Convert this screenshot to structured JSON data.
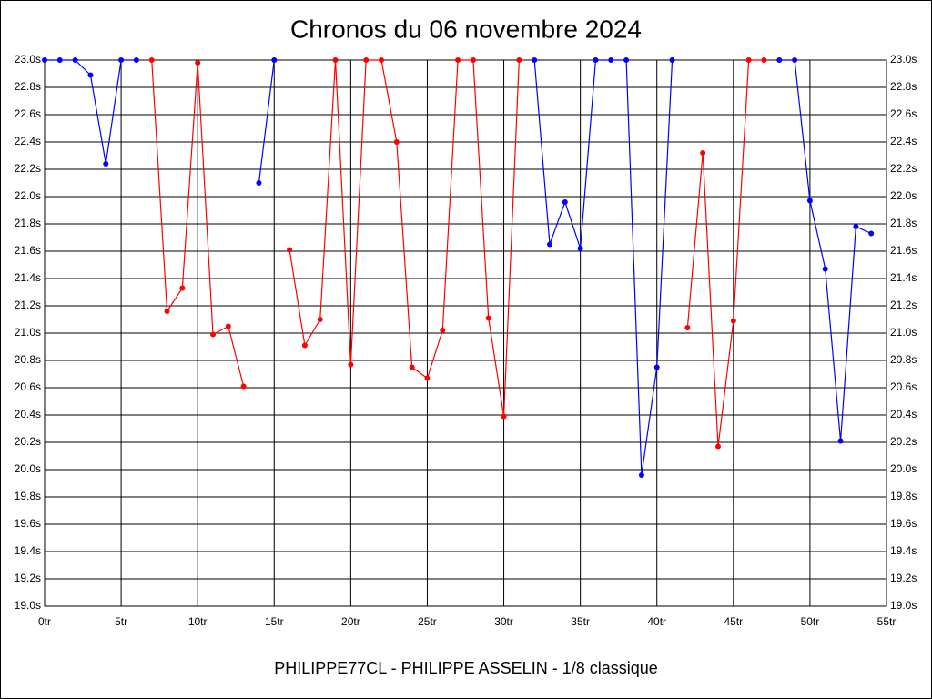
{
  "chart_data": {
    "type": "line",
    "title": "Chronos du 06 novembre 2024",
    "x_label": "PHILIPPE77CL - PHILIPPE ASSELIN - 1/8 classique",
    "x": [
      0,
      1,
      2,
      3,
      4,
      5,
      6,
      7,
      8,
      9,
      10,
      11,
      12,
      13,
      14,
      15,
      16,
      17,
      18,
      19,
      20,
      21,
      22,
      23,
      24,
      25,
      26,
      27,
      28,
      29,
      30,
      31,
      32,
      33,
      34,
      35,
      36,
      37,
      38,
      39,
      40,
      41,
      42,
      43,
      44,
      45,
      46,
      47,
      48,
      49,
      50,
      51,
      52,
      53,
      54
    ],
    "series": [
      {
        "color": "#0000ff",
        "values": [
          23.0,
          23.0,
          23.0,
          22.89,
          22.24,
          23.0,
          23.0,
          null,
          null,
          null,
          null,
          null,
          null,
          null,
          22.1,
          23.0,
          null,
          null,
          null,
          null,
          null,
          null,
          null,
          null,
          null,
          null,
          null,
          null,
          null,
          null,
          null,
          null,
          23.0,
          21.65,
          21.96,
          21.62,
          23.0,
          23.0,
          23.0,
          19.96,
          20.75,
          23.0,
          null,
          null,
          null,
          null,
          null,
          null,
          23.0,
          23.0,
          21.97,
          21.47,
          20.21,
          21.78,
          21.73
        ]
      },
      {
        "color": "#ff0000",
        "values": [
          null,
          null,
          null,
          null,
          null,
          null,
          null,
          23.0,
          21.16,
          21.33,
          22.98,
          20.99,
          21.05,
          20.61,
          null,
          null,
          21.61,
          20.91,
          21.1,
          23.0,
          20.77,
          23.0,
          23.0,
          22.4,
          20.75,
          20.67,
          21.02,
          23.0,
          23.0,
          21.11,
          20.39,
          23.0,
          null,
          null,
          null,
          null,
          null,
          null,
          null,
          null,
          null,
          null,
          21.04,
          22.32,
          20.17,
          21.09,
          23.0,
          23.0,
          null,
          null,
          null,
          null,
          null,
          null,
          null
        ]
      }
    ],
    "xlim": [
      0,
      55
    ],
    "xticks": [
      {
        "value": 0,
        "label": "0tr"
      },
      {
        "value": 5,
        "label": "5tr"
      },
      {
        "value": 10,
        "label": "10tr"
      },
      {
        "value": 15,
        "label": "15tr"
      },
      {
        "value": 20,
        "label": "20tr"
      },
      {
        "value": 25,
        "label": "25tr"
      },
      {
        "value": 30,
        "label": "30tr"
      },
      {
        "value": 35,
        "label": "35tr"
      },
      {
        "value": 40,
        "label": "40tr"
      },
      {
        "value": 45,
        "label": "45tr"
      },
      {
        "value": 50,
        "label": "50tr"
      },
      {
        "value": 55,
        "label": "55tr"
      }
    ],
    "ylim": [
      19.0,
      23.0
    ],
    "yticks": [
      {
        "value": 19.0,
        "label": "19.0s"
      },
      {
        "value": 19.2,
        "label": "19.2s"
      },
      {
        "value": 19.4,
        "label": "19.4s"
      },
      {
        "value": 19.6,
        "label": "19.6s"
      },
      {
        "value": 19.8,
        "label": "19.8s"
      },
      {
        "value": 20.0,
        "label": "20.0s"
      },
      {
        "value": 20.2,
        "label": "20.2s"
      },
      {
        "value": 20.4,
        "label": "20.4s"
      },
      {
        "value": 20.6,
        "label": "20.6s"
      },
      {
        "value": 20.8,
        "label": "20.8s"
      },
      {
        "value": 21.0,
        "label": "21.0s"
      },
      {
        "value": 21.2,
        "label": "21.2s"
      },
      {
        "value": 21.4,
        "label": "21.4s"
      },
      {
        "value": 21.6,
        "label": "21.6s"
      },
      {
        "value": 21.8,
        "label": "21.8s"
      },
      {
        "value": 22.0,
        "label": "22.0s"
      },
      {
        "value": 22.2,
        "label": "22.2s"
      },
      {
        "value": 22.4,
        "label": "22.4s"
      },
      {
        "value": 22.6,
        "label": "22.6s"
      },
      {
        "value": 22.8,
        "label": "22.8s"
      },
      {
        "value": 23.0,
        "label": "23.0s"
      }
    ],
    "grid": true
  }
}
